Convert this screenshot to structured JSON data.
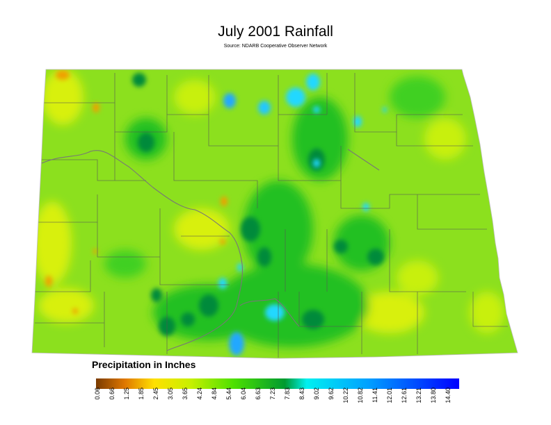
{
  "map": {
    "title": "July 2001 Rainfall",
    "subtitle": "Source: NDARB Cooperative Observer Network",
    "legend_title": "Precipitation in Inches"
  },
  "legend": {
    "ticks": [
      "0.06",
      "0.66",
      "1.25",
      "1.85",
      "2.45",
      "3.05",
      "3.65",
      "4.24",
      "4.84",
      "5.44",
      "6.04",
      "6.63",
      "7.23",
      "7.83",
      "8.43",
      "9.02",
      "9.62",
      "10.22",
      "10.82",
      "11.41",
      "12.01",
      "12.61",
      "13.21",
      "13.80",
      "14.40"
    ],
    "colors": [
      "#7a3b00",
      "#e07800",
      "#ffe000",
      "#c8f000",
      "#4ce000",
      "#009a30",
      "#00f0f0",
      "#00a0ff",
      "#0000ff"
    ]
  },
  "colors": {
    "base": "#8ce01e",
    "dry": "#e8f000",
    "very_dry": "#f0a000",
    "wet": "#20c020",
    "very_wet": "#008a3a",
    "extreme": "#20c8ff",
    "boundary": "#555555"
  }
}
